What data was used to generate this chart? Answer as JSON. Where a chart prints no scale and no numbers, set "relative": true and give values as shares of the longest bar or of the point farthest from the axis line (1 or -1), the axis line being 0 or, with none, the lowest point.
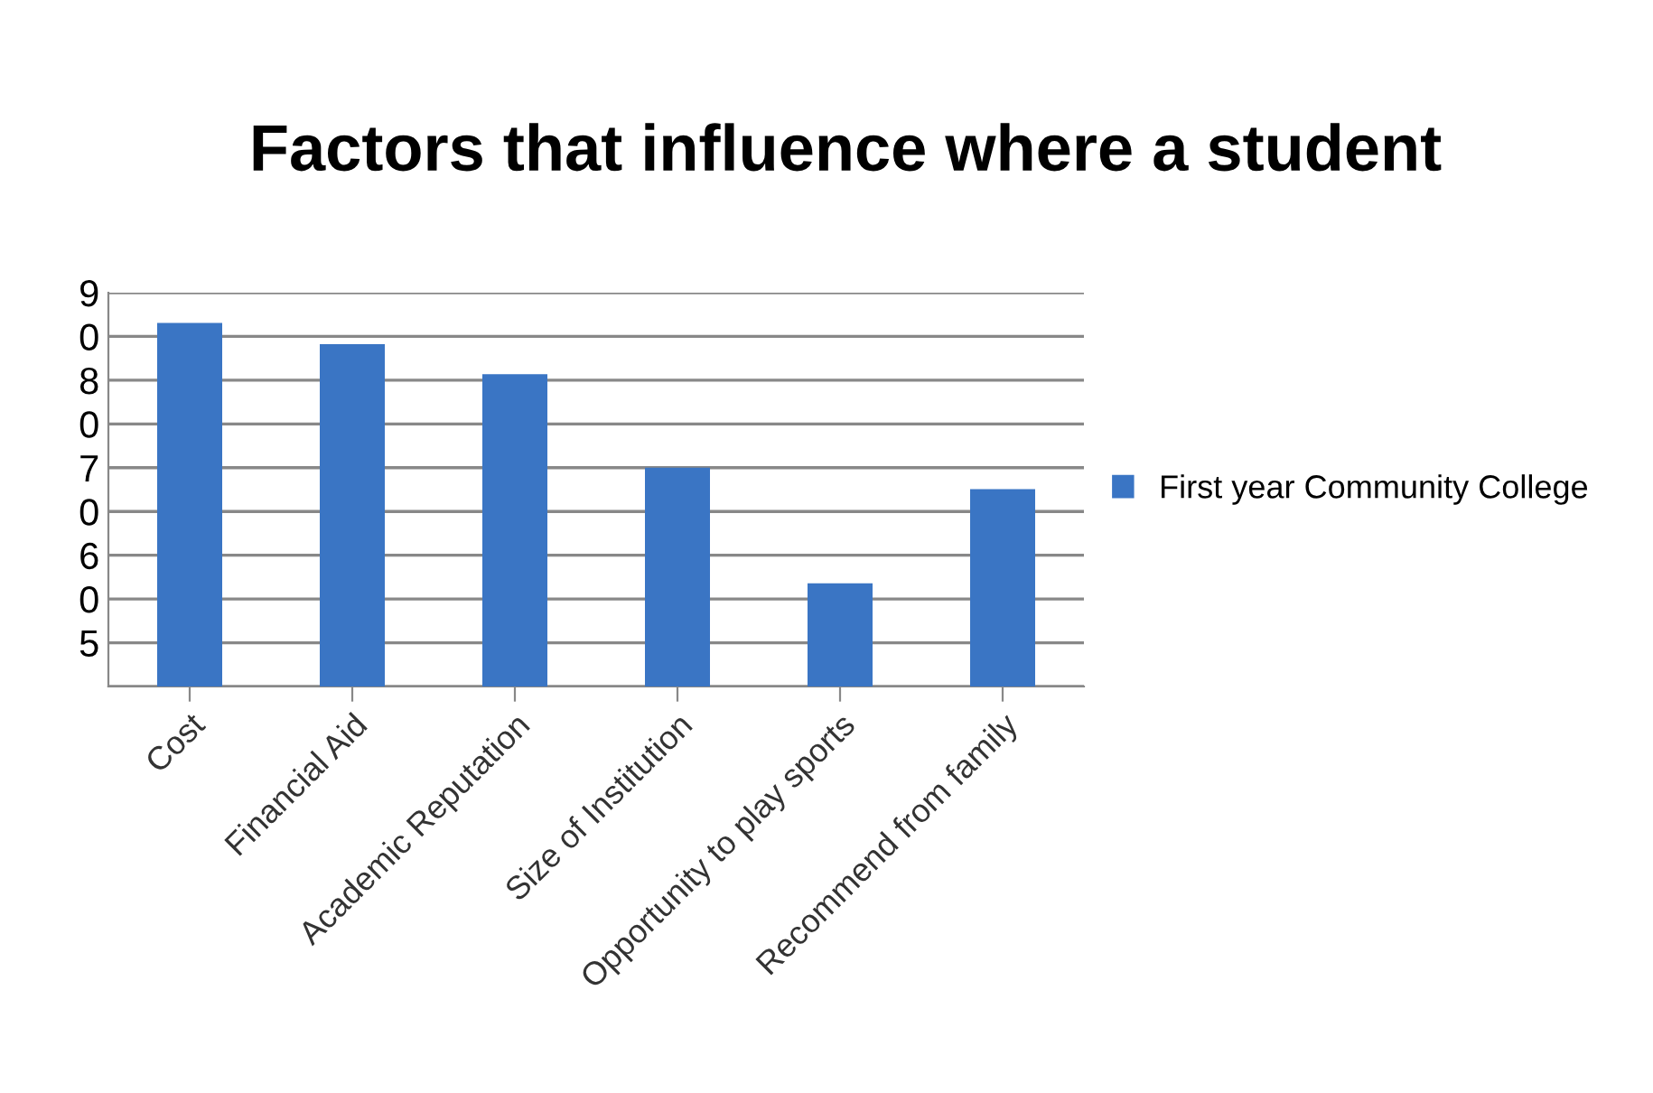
{
  "chart_data": {
    "type": "bar",
    "title": "Factors that influence where a student",
    "categories": [
      "Cost",
      "Financial Aid",
      "Academic Reputation",
      "Size of Institution",
      "Opportunity to play sports",
      "Recommend from family"
    ],
    "series": [
      {
        "name": "First year Community College",
        "color": "#3a75c4",
        "values": [
          1,
          0.942,
          0.859,
          0.602,
          0.284,
          0.543
        ]
      }
    ],
    "relative": true,
    "annotations": [
      "9",
      "0",
      "8",
      "0",
      "7",
      "0",
      "6",
      "0",
      "5"
    ],
    "grid": "y",
    "legend": "right"
  }
}
